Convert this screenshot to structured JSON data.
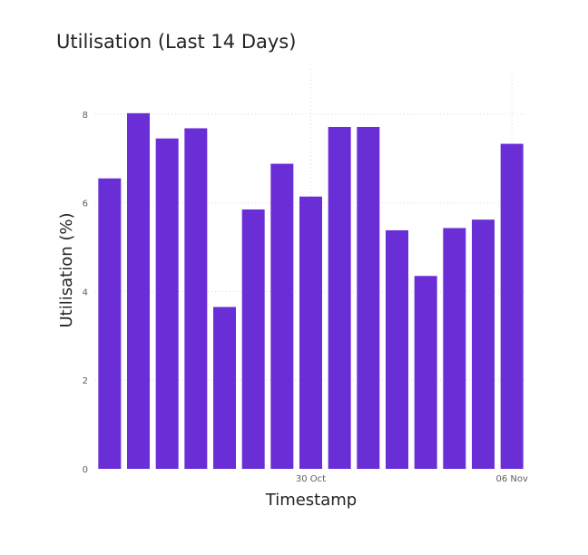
{
  "chart_data": {
    "type": "bar",
    "title": "Utilisation (Last 14 Days)",
    "xlabel": "Timestamp",
    "ylabel": "Utilisation (%)",
    "ylim": [
      0,
      9
    ],
    "yticks": [
      0,
      2,
      4,
      6,
      8
    ],
    "xtick_labels": [
      {
        "label": "30 Oct",
        "date": "2023-10-30"
      },
      {
        "label": "06 Nov",
        "date": "2023-11-06"
      }
    ],
    "x": [
      "2023-10-23",
      "2023-10-24",
      "2023-10-25",
      "2023-10-26",
      "2023-10-27",
      "2023-10-28",
      "2023-10-29",
      "2023-10-30",
      "2023-10-31",
      "2023-11-01",
      "2023-11-02",
      "2023-11-03",
      "2023-11-04",
      "2023-11-05",
      "2023-11-06"
    ],
    "values": [
      6.55,
      8.02,
      7.45,
      7.68,
      3.65,
      5.85,
      6.88,
      6.14,
      7.71,
      7.71,
      5.38,
      4.35,
      5.43,
      5.62,
      7.33
    ],
    "bar_color": "#6a2ed6",
    "grid": true
  }
}
